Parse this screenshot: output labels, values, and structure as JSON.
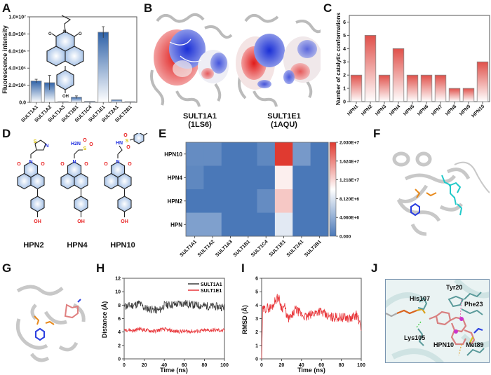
{
  "panels": {
    "A": "A",
    "B": "B",
    "C": "C",
    "D": "D",
    "E": "E",
    "F": "F",
    "G": "G",
    "H": "H",
    "I": "I",
    "J": "J"
  },
  "panel_b": {
    "captions": [
      {
        "name": "SULT1A1",
        "pdb": "(1LS6)"
      },
      {
        "name": "SULT1E1",
        "pdb": "(1AQU)"
      }
    ]
  },
  "panel_d": {
    "compounds": [
      "HPN2",
      "HPN4",
      "HPN10"
    ],
    "atom_labels": {
      "oh": "OH",
      "n": "N",
      "o": "O",
      "s": "S",
      "h2n": "H2N",
      "hn": "HN"
    }
  },
  "panel_j": {
    "residues": [
      "Tyr20",
      "His107",
      "Phe23",
      "Lys105",
      "HPN10",
      "Met89"
    ]
  },
  "panel_a_inset": {
    "oh": "OH",
    "o": "O",
    "n": "N"
  },
  "chart_data": [
    {
      "id": "A",
      "type": "bar",
      "title": "",
      "xlabel": "",
      "ylabel": "Fluorescence intensity",
      "categories": [
        "SULT1A1",
        "SULT1A2",
        "SULT1A3",
        "SULT1B1",
        "SULT1C4",
        "SULT1E1",
        "SULT2A1",
        "SULT2B1"
      ],
      "values": [
        2500000,
        2300000,
        30000,
        600000,
        120000,
        8200000,
        300000,
        30000
      ],
      "errors": [
        200000,
        850000,
        0,
        150000,
        0,
        650000,
        0,
        0
      ],
      "ylim": [
        0,
        10000000
      ],
      "yticks": [
        "0.0",
        "2.0×10⁶",
        "4.0×10⁶",
        "6.0×10⁶",
        "8.0×10⁶",
        "1.0×10⁷"
      ],
      "bar_color": "#2f62a8"
    },
    {
      "id": "C",
      "type": "bar",
      "title": "",
      "xlabel": "",
      "ylabel": "Number of catalytic conformations",
      "categories": [
        "HPN1",
        "HPN2",
        "HPN3",
        "HPN4",
        "HPN5",
        "HPN6",
        "HPN7",
        "HPN8",
        "HPN9",
        "HPN10"
      ],
      "values": [
        2,
        5,
        2,
        4,
        2,
        2,
        2,
        1,
        1,
        3
      ],
      "ylim": [
        0,
        6.5
      ],
      "yticks": [
        "0",
        "1",
        "2",
        "3",
        "4",
        "5",
        "6"
      ],
      "bar_color": "#e0504a"
    },
    {
      "id": "E",
      "type": "heatmap",
      "title": "",
      "rows": [
        "HPN10",
        "HPN4",
        "HPN2",
        "HPN"
      ],
      "columns": [
        "SULT1A1",
        "SULT1A2",
        "SULT1A3",
        "SULT1B1",
        "SULT1C4",
        "SULT1E1",
        "SULT2A1",
        "SULT2B1"
      ],
      "values": [
        [
          1500000,
          1500000,
          0,
          0,
          1200000,
          20300000,
          2500000,
          0
        ],
        [
          1200000,
          0,
          0,
          0,
          0,
          11000000,
          0,
          0
        ],
        [
          0,
          0,
          0,
          0,
          1500000,
          13000000,
          0,
          0
        ],
        [
          3000000,
          3000000,
          0,
          0,
          0,
          8500000,
          0,
          0
        ]
      ],
      "colorbar": {
        "min": 0,
        "max": 20300000,
        "ticks": [
          "0.000",
          "4.060E+6",
          "8.120E+6",
          "1.218E+7",
          "1.624E+7",
          "2.030E+7"
        ],
        "low_color": "#4a78b8",
        "mid_color": "#ffffff",
        "high_color": "#e03a30"
      }
    },
    {
      "id": "H",
      "type": "line",
      "xlabel": "Time (ns)",
      "ylabel": "Distance (Å)",
      "xlim": [
        0,
        100
      ],
      "ylim": [
        0,
        12
      ],
      "xticks": [
        "0",
        "20",
        "40",
        "60",
        "80",
        "100"
      ],
      "yticks": [
        "0",
        "2",
        "4",
        "6",
        "8",
        "10",
        "12"
      ],
      "legend": "top-right",
      "series": [
        {
          "name": "SULT1A1",
          "color": "#3a3a3a",
          "x": [
            0,
            10,
            15,
            20,
            30,
            35,
            40,
            50,
            60,
            70,
            80,
            90,
            100
          ],
          "values": [
            7.8,
            8.0,
            8.3,
            7.6,
            7.3,
            7.2,
            8.0,
            8.1,
            8.3,
            8.0,
            7.9,
            7.8,
            7.7
          ]
        },
        {
          "name": "SULT1E1",
          "color": "#e8363a",
          "x": [
            0,
            10,
            15,
            20,
            30,
            35,
            40,
            50,
            60,
            70,
            80,
            90,
            100
          ],
          "values": [
            4.4,
            4.2,
            4.5,
            4.3,
            4.1,
            4.3,
            4.4,
            4.1,
            4.1,
            4.1,
            4.2,
            4.3,
            4.2
          ]
        }
      ]
    },
    {
      "id": "I",
      "type": "line",
      "xlabel": "Time (ns)",
      "ylabel": "RMSD (Å)",
      "xlim": [
        0,
        100
      ],
      "ylim": [
        0,
        6
      ],
      "xticks": [
        "0",
        "20",
        "40",
        "60",
        "80",
        "100"
      ],
      "yticks": [
        "0",
        "1",
        "2",
        "3",
        "4",
        "5",
        "6"
      ],
      "series": [
        {
          "name": "RMSD",
          "color": "#e8363a",
          "x": [
            0,
            1,
            5,
            10,
            14,
            17,
            20,
            23,
            26,
            30,
            34,
            40,
            45,
            50,
            58,
            65,
            70,
            80,
            90,
            95,
            98,
            100
          ],
          "values": [
            0,
            3.6,
            3.8,
            3.8,
            4.4,
            4.6,
            3.8,
            3.9,
            3.0,
            3.1,
            3.7,
            3.3,
            3.1,
            3.3,
            3.6,
            3.2,
            3.1,
            3.1,
            3.0,
            3.3,
            2.8,
            2.0
          ]
        }
      ]
    }
  ]
}
